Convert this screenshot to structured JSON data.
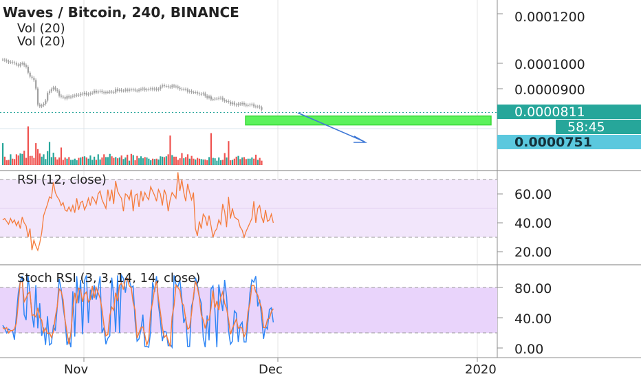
{
  "header": {
    "title": "Waves / Bitcoin, 240, BINANCE",
    "indicators": [
      "Vol (20)",
      "Vol (20)"
    ]
  },
  "colors": {
    "up": "#26a69a",
    "down": "#ef5350",
    "candle": "#a0a0a0",
    "rsi_line": "#f57c3c",
    "stoch_k": "#2f86f5",
    "stoch_d": "#f57c3c",
    "rsi_band": "#f2e6fb",
    "stoch_band": "#e9d4fb",
    "current_price": "#26a69a",
    "target_price": "#5bc8de",
    "target_zone": "#5cf25c",
    "arrow": "#3f78d6"
  },
  "price_panel": {
    "axis_ticks": [
      "0.0001200",
      "0.0001000",
      "0.0000900"
    ],
    "current_price_label": "0.0000811",
    "countdown_label": "58:45",
    "target_price_label": "0.0000751",
    "target_zone_range": [
      7.51e-05,
      7.87e-05
    ]
  },
  "rsi_panel": {
    "label": "RSI (12, close)",
    "axis_ticks": [
      "60.00",
      "40.00",
      "20.00"
    ],
    "band": [
      30,
      70
    ]
  },
  "stoch_panel": {
    "label": "Stoch RSI (3, 3, 14, 14, close)",
    "axis_ticks": [
      "80.00",
      "40.00",
      "0.00"
    ],
    "band": [
      20,
      80
    ]
  },
  "x_axis": {
    "ticks": [
      "Nov",
      "Dec",
      "2020"
    ]
  },
  "chart_data": [
    {
      "type": "candlestick",
      "title": "Waves / Bitcoin, 240, BINANCE",
      "ylim": [
        7.45e-05,
        0.0001212
      ],
      "close": [
        0.0001015,
        0.0001012,
        0.0001008,
        0.0001004,
        0.0001006,
        0.0001003,
        0.0001,
        9.95e-05,
        9.9e-05,
        9.98e-05,
        0.0001,
        9.92e-05,
        9.86e-05,
        9.62e-05,
        9.46e-05,
        9.41e-05,
        9.32e-05,
        8.98e-05,
        8.33e-05,
        8.26e-05,
        8.3e-05,
        8.36e-05,
        8.49e-05,
        8.8e-05,
        8.87e-05,
        8.95e-05,
        9.02e-05,
        8.93e-05,
        8.88e-05,
        8.69e-05,
        8.65e-05,
        8.63e-05,
        8.57e-05,
        8.67e-05,
        8.62e-05,
        8.65e-05,
        8.68e-05,
        8.7e-05,
        8.73e-05,
        8.71e-05,
        8.77e-05,
        8.75e-05,
        8.81e-05,
        8.73e-05,
        8.76e-05,
        8.79e-05,
        8.81e-05,
        8.89e-05,
        8.82e-05,
        8.86e-05,
        8.88e-05,
        8.83e-05,
        8.81e-05,
        8.83e-05,
        8.83e-05,
        8.85e-05,
        8.84e-05,
        8.82e-05,
        8.96e-05,
        8.89e-05,
        8.93e-05,
        8.89e-05,
        8.89e-05,
        8.94e-05,
        8.89e-05,
        8.94e-05,
        8.92e-05,
        8.94e-05,
        8.9e-05,
        8.89e-05,
        8.93e-05,
        8.95e-05,
        8.98e-05,
        8.92e-05,
        8.94e-05,
        8.95e-05,
        8.99e-05,
        8.94e-05,
        8.98e-05,
        8.93e-05,
        8.96e-05,
        9.06e-05,
        9.11e-05,
        9.08e-05,
        9.08e-05,
        9.05e-05,
        9.04e-05,
        9.1e-05,
        9.07e-05,
        9.06e-05,
        9.01e-05,
        8.96e-05,
        8.95e-05,
        8.95e-05,
        8.94e-05,
        8.85e-05,
        8.88e-05,
        8.83e-05,
        8.82e-05,
        8.83e-05,
        8.78e-05,
        8.75e-05,
        8.76e-05,
        8.78e-05,
        8.68e-05,
        8.61e-05,
        8.66e-05,
        8.54e-05,
        8.55e-05,
        8.57e-05,
        8.57e-05,
        8.59e-05,
        8.61e-05,
        8.52e-05,
        8.47e-05,
        8.47e-05,
        8.44e-05,
        8.35e-05,
        8.41e-05,
        8.33e-05,
        8.31e-05,
        8.37e-05,
        8.35e-05,
        8.39e-05,
        8.33e-05,
        8.29e-05,
        8.31e-05,
        8.33e-05,
        8.34e-05,
        8.26e-05,
        8.25e-05,
        8.25e-05,
        8.22e-05,
        8.12e-05
      ]
    },
    {
      "type": "bar",
      "title": "Vol (20)",
      "values": [
        0.55,
        0.21,
        0.12,
        0.13,
        0.27,
        0.16,
        0.15,
        0.27,
        0.24,
        0.29,
        0.28,
        0.36,
        0.18,
        0.97,
        0.23,
        0.23,
        0.18,
        0.55,
        0.4,
        0.29,
        0.21,
        0.27,
        0.15,
        0.35,
        0.58,
        0.2,
        0.31,
        0.2,
        0.14,
        0.19,
        0.44,
        0.13,
        0.19,
        0.16,
        0.2,
        0.13,
        0.13,
        0.16,
        0.12,
        0.18,
        0.19,
        0.21,
        0.22,
        0.19,
        0.16,
        0.24,
        0.13,
        0.21,
        0.13,
        0.27,
        0.14,
        0.19,
        0.27,
        0.2,
        0.2,
        0.28,
        0.22,
        0.18,
        0.2,
        0.17,
        0.19,
        0.24,
        0.15,
        0.19,
        0.26,
        0.11,
        0.28,
        0.25,
        0.12,
        0.23,
        0.17,
        0.22,
        0.17,
        0.2,
        0.19,
        0.16,
        0.12,
        0.16,
        0.15,
        0.16,
        0.14,
        0.22,
        0.21,
        0.2,
        0.22,
        0.27,
        0.74,
        0.25,
        0.21,
        0.21,
        0.13,
        0.17,
        0.3,
        0.17,
        0.2,
        0.27,
        0.16,
        0.23,
        0.16,
        0.14,
        0.18,
        0.16,
        0.15,
        0.14,
        0.14,
        0.12,
        0.2,
        0.8,
        0.18,
        0.17,
        0.11,
        0.19,
        0.12,
        0.13,
        0.3,
        0.19,
        0.6,
        0.12,
        0.13,
        0.16,
        0.21,
        0.23,
        0.15,
        0.19,
        0.2,
        0.15,
        0.16,
        0.16,
        0.19,
        0.16,
        0.26,
        0.13,
        0.18,
        0.11
      ]
    },
    {
      "type": "line",
      "title": "RSI (12, close)",
      "ylim": [
        14,
        76
      ],
      "series": [
        {
          "values": [
            42,
            43,
            41,
            39,
            43,
            40,
            42,
            38,
            41,
            36,
            44,
            40,
            38,
            30,
            36,
            21,
            28,
            24,
            21,
            26,
            33,
            45,
            49,
            53,
            58,
            57,
            68,
            61,
            58,
            56,
            52,
            54,
            49,
            48,
            51,
            48,
            52,
            47,
            57,
            49,
            54,
            55,
            49,
            52,
            57,
            52,
            58,
            56,
            53,
            60,
            62,
            56,
            53,
            50,
            63,
            55,
            63,
            53,
            69,
            62,
            59,
            57,
            48,
            60,
            59,
            56,
            63,
            48,
            59,
            60,
            51,
            62,
            55,
            61,
            58,
            56,
            65,
            62,
            59,
            55,
            63,
            60,
            52,
            63,
            59,
            48,
            56,
            61,
            59,
            57,
            75,
            62,
            70,
            61,
            55,
            67,
            61,
            56,
            61,
            36,
            31,
            41,
            36,
            46,
            44,
            38,
            45,
            38,
            30,
            34,
            36,
            42,
            39,
            53,
            48,
            37,
            58,
            43,
            50,
            44,
            43,
            42,
            37,
            35,
            30,
            34,
            37,
            40,
            43,
            55,
            40,
            50,
            52,
            44,
            40,
            49,
            41,
            42,
            46,
            40
          ]
        }
      ]
    },
    {
      "type": "line",
      "title": "Stoch RSI (3, 3, 14, 14, close)",
      "ylim": [
        -5,
        100
      ],
      "series": [
        {
          "values": [
            30,
            26,
            20,
            25,
            23,
            23,
            11,
            44,
            73,
            88,
            95,
            44,
            37,
            95,
            71,
            46,
            27,
            83,
            26,
            59,
            16,
            27,
            4,
            42,
            4,
            6,
            29,
            23,
            54,
            91,
            78,
            54,
            37,
            4,
            12,
            1,
            75,
            15,
            95,
            59,
            90,
            18,
            89,
            96,
            33,
            77,
            64,
            83,
            64,
            77,
            95,
            20,
            27,
            5,
            13,
            16,
            93,
            69,
            21,
            96,
            20,
            96,
            92,
            73,
            92,
            90,
            80,
            82,
            36,
            9,
            12,
            24,
            44,
            2,
            2,
            1,
            23,
            87,
            74,
            95,
            57,
            36,
            9,
            22,
            21,
            3,
            5,
            1,
            96,
            84,
            81,
            90,
            66,
            33,
            41,
            2,
            2,
            55,
            65,
            93,
            84,
            68,
            59,
            14,
            1,
            43,
            10,
            78,
            82,
            50,
            1,
            84,
            66,
            49,
            90,
            68,
            23,
            5,
            9,
            49,
            46,
            8,
            30,
            34,
            8,
            8,
            36,
            73,
            90,
            87,
            95,
            55,
            64,
            41,
            12,
            29,
            25,
            51,
            53,
            34
          ]
        },
        {
          "values": [
            27,
            25,
            27,
            20,
            23,
            23,
            25,
            33,
            60,
            88,
            88,
            61,
            66,
            72,
            74,
            43,
            44,
            41,
            53,
            40,
            37,
            21,
            26,
            19,
            20,
            14,
            21,
            41,
            55,
            78,
            75,
            64,
            37,
            21,
            5,
            20,
            51,
            73,
            59,
            79,
            77,
            61,
            71,
            74,
            61,
            64,
            82,
            66,
            80,
            73,
            66,
            51,
            30,
            16,
            18,
            43,
            54,
            50,
            73,
            62,
            83,
            86,
            77,
            91,
            92,
            82,
            80,
            60,
            50,
            13,
            20,
            27,
            28,
            17,
            4,
            12,
            48,
            60,
            79,
            88,
            65,
            47,
            27,
            14,
            17,
            10,
            2,
            41,
            56,
            83,
            80,
            76,
            60,
            56,
            38,
            25,
            27,
            46,
            69,
            88,
            80,
            67,
            44,
            37,
            26,
            37,
            37,
            53,
            76,
            53,
            62,
            50,
            67,
            74,
            59,
            52,
            38,
            18,
            26,
            32,
            38,
            26,
            28,
            26,
            15,
            21,
            48,
            59,
            83,
            83,
            74,
            70,
            60,
            53,
            27,
            27,
            38,
            39,
            48,
            52
          ]
        }
      ]
    }
  ]
}
